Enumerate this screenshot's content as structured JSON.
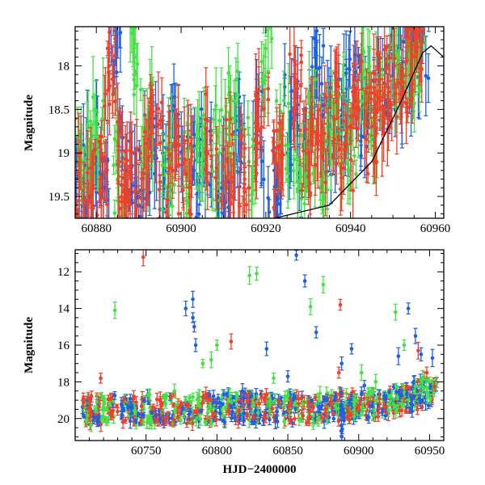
{
  "colors": {
    "blue": "#1f5fe0",
    "green": "#44e044",
    "red": "#f0402a",
    "axis": "#000000",
    "background": "#ffffff"
  },
  "chart_data": [
    {
      "type": "scatter",
      "title": "",
      "xlabel": "",
      "ylabel": "Magnitude",
      "xlim": [
        60875,
        60962
      ],
      "ylim": [
        17.55,
        19.75
      ],
      "y_inverted": true,
      "xticks": [
        60880,
        60900,
        60920,
        60940,
        60960
      ],
      "yticks": [
        18,
        18.5,
        19,
        19.5
      ],
      "xtick_labels": [
        "60880",
        "60900",
        "60920",
        "60940",
        "60960"
      ],
      "ytick_labels": [
        "18",
        "18.5",
        "19",
        "19.5"
      ],
      "series": [
        {
          "name": "blue",
          "color": "blue",
          "note": "dense light curve with error bars",
          "points": [
            [
              60876.5,
              19.3
            ],
            [
              60879,
              19.1
            ],
            [
              60882,
              19.4
            ],
            [
              60884.5,
              17.6
            ],
            [
              60887,
              19.2
            ],
            [
              60890,
              19.5
            ],
            [
              60893,
              19.0
            ],
            [
              60896,
              19.3
            ],
            [
              60899,
              18.9
            ],
            [
              60903,
              19.2
            ],
            [
              60906,
              19.0
            ],
            [
              60910,
              19.4
            ],
            [
              60914,
              18.9
            ],
            [
              60918,
              18.8
            ],
            [
              60922,
              19.2
            ],
            [
              60926,
              18.6
            ],
            [
              60929,
              18.9
            ],
            [
              60932,
              18.1
            ],
            [
              60935,
              18.7
            ],
            [
              60938,
              18.5
            ],
            [
              60941,
              18.4
            ],
            [
              60944,
              18.5
            ],
            [
              60948,
              18.2
            ],
            [
              60951,
              18.0
            ],
            [
              60953.5,
              17.9
            ],
            [
              60955,
              17.7
            ],
            [
              60957,
              17.6
            ]
          ]
        },
        {
          "name": "green",
          "color": "green",
          "note": "dense light curve with error bars",
          "points": [
            [
              60877,
              19.2
            ],
            [
              60880,
              18.8
            ],
            [
              60885,
              19.3
            ],
            [
              60889,
              17.9
            ],
            [
              60892,
              18.7
            ],
            [
              60897,
              19.1
            ],
            [
              60901,
              19.2
            ],
            [
              60905,
              18.9
            ],
            [
              60909,
              19.0
            ],
            [
              60912,
              18.6
            ],
            [
              60916,
              19.1
            ],
            [
              60920,
              17.8
            ],
            [
              60924,
              18.8
            ],
            [
              60928,
              19.1
            ],
            [
              60931,
              18.7
            ],
            [
              60934,
              19.0
            ],
            [
              60937,
              18.6
            ],
            [
              60940,
              18.9
            ],
            [
              60943,
              18.3
            ],
            [
              60946,
              18.6
            ],
            [
              60950,
              18.3
            ],
            [
              60954,
              17.9
            ],
            [
              60956,
              17.8
            ]
          ]
        },
        {
          "name": "red",
          "color": "red",
          "note": "dense light curve with error bars",
          "points": [
            [
              60876,
              19.4
            ],
            [
              60878,
              19.6
            ],
            [
              60881,
              19.3
            ],
            [
              60883,
              18.0
            ],
            [
              60886,
              19.1
            ],
            [
              60888,
              19.5
            ],
            [
              60891,
              19.3
            ],
            [
              60894,
              18.9
            ],
            [
              60898,
              19.2
            ],
            [
              60902,
              19.4
            ],
            [
              60907,
              18.8
            ],
            [
              60911,
              19.1
            ],
            [
              60915,
              19.3
            ],
            [
              60919,
              18.7
            ],
            [
              60923,
              19.2
            ],
            [
              60927,
              18.2
            ],
            [
              60930,
              19.0
            ],
            [
              60933,
              18.8
            ],
            [
              60936,
              18.6
            ],
            [
              60939,
              18.9
            ],
            [
              60942,
              18.5
            ],
            [
              60945,
              18.7
            ],
            [
              60947,
              18.4
            ],
            [
              60949,
              18.3
            ],
            [
              60952,
              18.1
            ],
            [
              60954.5,
              17.9
            ],
            [
              60956.5,
              17.6
            ]
          ]
        }
      ],
      "model_curve": {
        "color": "axis",
        "x": [
          60922,
          60935,
          60945,
          60952,
          60957,
          60959,
          60962
        ],
        "y": [
          19.75,
          19.6,
          19.1,
          18.4,
          17.85,
          17.77,
          17.9
        ]
      }
    },
    {
      "type": "scatter",
      "title": "",
      "xlabel": "HJD−2400000",
      "ylabel": "Magnitude",
      "xlim": [
        60700,
        60960
      ],
      "ylim": [
        10.8,
        21.2
      ],
      "y_inverted": true,
      "xticks": [
        60750,
        60800,
        60850,
        60900,
        60950
      ],
      "yticks": [
        12,
        14,
        16,
        18,
        20
      ],
      "xtick_labels": [
        "60750",
        "60800",
        "60850",
        "60900",
        "60950"
      ],
      "ytick_labels": [
        "12",
        "14",
        "16",
        "18",
        "20"
      ],
      "series": [
        {
          "name": "blue",
          "color": "blue",
          "points": [
            [
              60783,
              13.5
            ],
            [
              60783,
              14.5
            ],
            [
              60784,
              15.0
            ],
            [
              60778,
              14.0
            ],
            [
              60785,
              16.0
            ],
            [
              60835,
              16.2
            ],
            [
              60856,
              11.1
            ],
            [
              60862,
              12.5
            ],
            [
              60870,
              15.3
            ],
            [
              60888,
              17.0
            ],
            [
              60895,
              16.2
            ],
            [
              60904,
              18.2
            ],
            [
              60928,
              16.6
            ],
            [
              60935,
              14.0
            ],
            [
              60940,
              15.5
            ],
            [
              60944,
              16.5
            ],
            [
              60952,
              16.7
            ],
            [
              60850,
              17.7
            ],
            [
              60818,
              18.5
            ]
          ]
        },
        {
          "name": "green",
          "color": "green",
          "points": [
            [
              60728,
              14.1
            ],
            [
              60790,
              17.0
            ],
            [
              60796,
              16.8
            ],
            [
              60800,
              16.0
            ],
            [
              60823,
              12.2
            ],
            [
              60828,
              12.1
            ],
            [
              60866,
              13.9
            ],
            [
              60875,
              12.7
            ],
            [
              60902,
              17.5
            ],
            [
              60912,
              18.0
            ],
            [
              60926,
              14.2
            ],
            [
              60932,
              16.0
            ],
            [
              60945,
              17.8
            ],
            [
              60840,
              17.8
            ],
            [
              60770,
              18.5
            ]
          ]
        },
        {
          "name": "red",
          "color": "red",
          "points": [
            [
              60748,
              11.2
            ],
            [
              60718,
              17.8
            ],
            [
              60810,
              15.8
            ],
            [
              60887,
              13.8
            ],
            [
              60942,
              16.3
            ],
            [
              60948,
              17.5
            ],
            [
              60886,
              17.5
            ],
            [
              60760,
              19.0
            ]
          ]
        }
      ],
      "baseline": {
        "note": "dense band of points around magnitude 19-20, brightening toward the end",
        "x": [
          60705,
          60740,
          60780,
          60820,
          60860,
          60900,
          60930,
          60950,
          60955
        ],
        "y": [
          19.6,
          19.5,
          19.5,
          19.4,
          19.5,
          19.3,
          19.0,
          18.5,
          17.9
        ]
      }
    }
  ]
}
